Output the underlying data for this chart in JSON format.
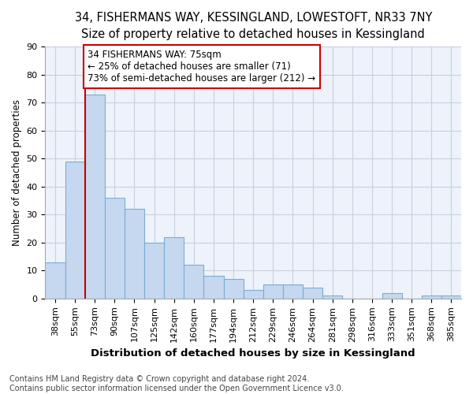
{
  "title_line1": "34, FISHERMANS WAY, KESSINGLAND, LOWESTOFT, NR33 7NY",
  "title_line2": "Size of property relative to detached houses in Kessingland",
  "xlabel": "Distribution of detached houses by size in Kessingland",
  "ylabel": "Number of detached properties",
  "categories": [
    "38sqm",
    "55sqm",
    "73sqm",
    "90sqm",
    "107sqm",
    "125sqm",
    "142sqm",
    "160sqm",
    "177sqm",
    "194sqm",
    "212sqm",
    "229sqm",
    "246sqm",
    "264sqm",
    "281sqm",
    "298sqm",
    "316sqm",
    "333sqm",
    "351sqm",
    "368sqm",
    "385sqm"
  ],
  "values": [
    13,
    49,
    73,
    36,
    32,
    20,
    22,
    12,
    8,
    7,
    3,
    5,
    5,
    4,
    1,
    0,
    0,
    2,
    0,
    1,
    1
  ],
  "bar_color": "#c5d8f0",
  "bar_edge_color": "#7aadd4",
  "annotation_text": "34 FISHERMANS WAY: 75sqm\n← 25% of detached houses are smaller (71)\n73% of semi-detached houses are larger (212) →",
  "vline_x": 2.0,
  "vline_color": "#cc0000",
  "box_color": "#cc0000",
  "ylim": [
    0,
    90
  ],
  "yticks": [
    0,
    10,
    20,
    30,
    40,
    50,
    60,
    70,
    80,
    90
  ],
  "footnote": "Contains HM Land Registry data © Crown copyright and database right 2024.\nContains public sector information licensed under the Open Government Licence v3.0.",
  "bg_color": "#eef2fa",
  "grid_color": "#c8d0e0",
  "title1_fontsize": 10.5,
  "title2_fontsize": 9.5,
  "tick_fontsize": 8,
  "ylabel_fontsize": 8.5,
  "xlabel_fontsize": 9.5,
  "annot_fontsize": 8.5,
  "footnote_fontsize": 7
}
